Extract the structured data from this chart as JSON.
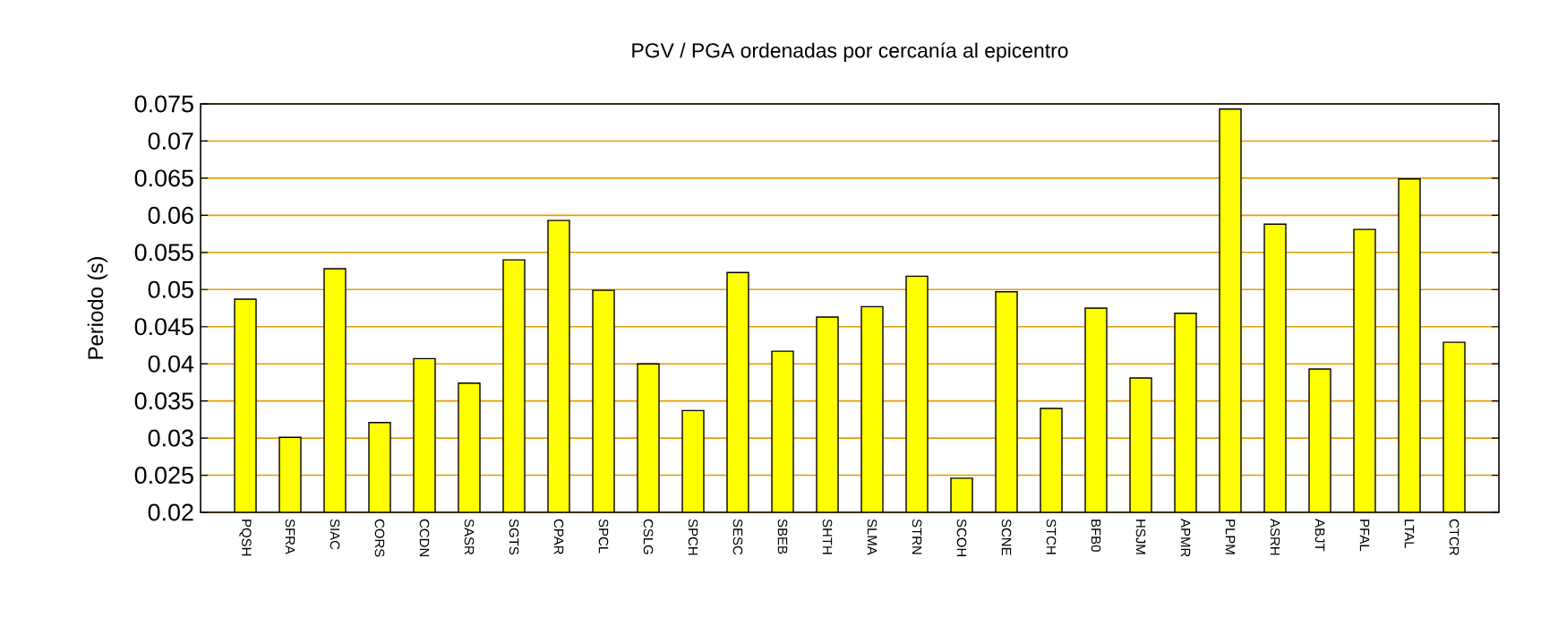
{
  "chart_data": {
    "type": "bar",
    "title": "PGV / PGA ordenadas por cercanía al epicentro",
    "ylabel": "Periodo (s)",
    "categories": [
      "PQSH",
      "SFRA",
      "SIAC",
      "CORS",
      "CCDN",
      "SASR",
      "SGTS",
      "CPAR",
      "SPCL",
      "CSLG",
      "SPCH",
      "SESC",
      "SBEB",
      "SHTH",
      "SLMA",
      "STRN",
      "SCOH",
      "SCNE",
      "STCH",
      "BFB0",
      "HSJM",
      "APMR",
      "PLPM",
      "ASRH",
      "ABJT",
      "PFAL",
      "LTAL",
      "CTCR"
    ],
    "values": [
      0.0487,
      0.0301,
      0.0528,
      0.0321,
      0.0407,
      0.0374,
      0.054,
      0.0593,
      0.0499,
      0.04,
      0.0337,
      0.0523,
      0.0417,
      0.0463,
      0.0477,
      0.0518,
      0.0246,
      0.0497,
      0.034,
      0.0475,
      0.0381,
      0.0468,
      0.0743,
      0.0588,
      0.0393,
      0.0581,
      0.0649,
      0.0429
    ],
    "color": "#ffff00",
    "ylim": [
      0.02,
      0.075
    ],
    "yticks": [
      0.02,
      0.025,
      0.03,
      0.035,
      0.04,
      0.045,
      0.05,
      0.055,
      0.06,
      0.065,
      0.07,
      0.075
    ],
    "grid": "y"
  }
}
